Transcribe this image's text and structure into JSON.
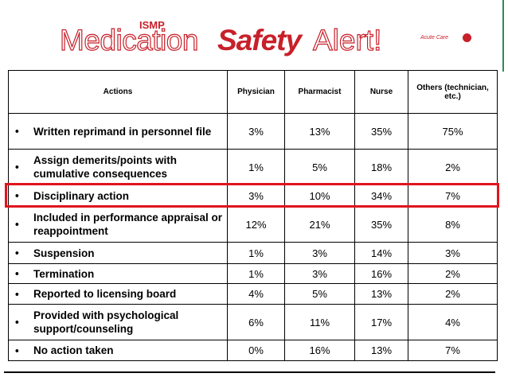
{
  "header": {
    "logo_small": "ISMP",
    "logo_part1": "Medication",
    "logo_part2": "Safety",
    "logo_part3": "Alert!",
    "tag": "Acute Care"
  },
  "table": {
    "columns": [
      "Actions",
      "Physician",
      "Pharmacist",
      "Nurse",
      "Others (technician, etc.)"
    ],
    "rows": [
      [
        "Written reprimand in personnel file",
        "3%",
        "13%",
        "35%",
        "75%"
      ],
      [
        "Assign demerits/points with cumulative consequences",
        "1%",
        "5%",
        "18%",
        "2%"
      ],
      [
        "Disciplinary action",
        "3%",
        "10%",
        "34%",
        "7%"
      ],
      [
        "Included in performance appraisal or reappointment",
        "12%",
        "21%",
        "35%",
        "8%"
      ],
      [
        "Suspension",
        "1%",
        "3%",
        "14%",
        "3%"
      ],
      [
        "Termination",
        "1%",
        "3%",
        "16%",
        "2%"
      ],
      [
        "Reported to licensing board",
        "4%",
        "5%",
        "13%",
        "2%"
      ],
      [
        "Provided with psychological support/counseling",
        "6%",
        "11%",
        "17%",
        "4%"
      ],
      [
        "No action taken",
        "0%",
        "16%",
        "13%",
        "7%"
      ]
    ],
    "highlighted_row": 2
  }
}
